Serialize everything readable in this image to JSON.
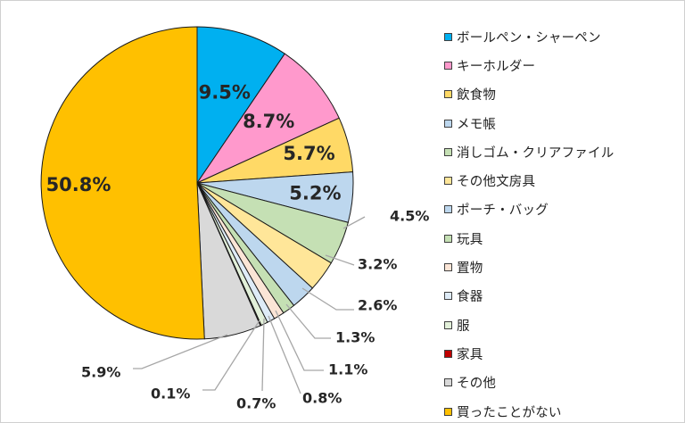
{
  "chart_data": {
    "type": "pie",
    "categories": [
      "ボールペン・シャーペン",
      "キーホルダー",
      "飲食物",
      "メモ帳",
      "消しゴム・クリアファイル",
      "その他文房具",
      "ポーチ・バッグ",
      "玩具",
      "置物",
      "食器",
      "服",
      "家具",
      "その他",
      "買ったことがない"
    ],
    "values": [
      9.5,
      8.7,
      5.7,
      5.2,
      4.5,
      3.2,
      2.6,
      1.3,
      1.1,
      0.8,
      0.7,
      0.1,
      5.9,
      50.8
    ],
    "labels": [
      "9.5%",
      "8.7%",
      "5.7%",
      "5.2%",
      "4.5%",
      "3.2%",
      "2.6%",
      "1.3%",
      "1.1%",
      "0.8%",
      "0.7%",
      "0.1%",
      "5.9%",
      "50.8%"
    ],
    "colors": [
      "#00B0F0",
      "#FF99CC",
      "#FFD966",
      "#BDD7EE",
      "#C5E0B4",
      "#FFE699",
      "#BDD7EE",
      "#C5E0B4",
      "#FBE5D6",
      "#DEEBF7",
      "#E2F0D9",
      "#C00000",
      "#D9D9D9",
      "#FFC000"
    ],
    "start_angle": "12 o'clock",
    "direction": "clockwise",
    "legend_position": "right"
  }
}
